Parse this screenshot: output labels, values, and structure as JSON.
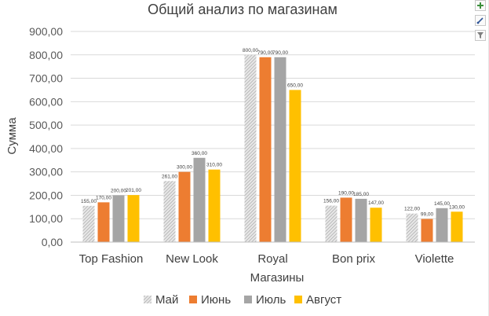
{
  "chart_data": {
    "type": "bar",
    "title": "Общий анализ по магазинам",
    "xlabel": "Магазины",
    "ylabel": "Сумма",
    "ylim": [
      0,
      900
    ],
    "yticks": [
      0,
      100,
      200,
      300,
      400,
      500,
      600,
      700,
      800,
      900
    ],
    "ytick_labels": [
      "0,00",
      "100,00",
      "200,00",
      "300,00",
      "400,00",
      "500,00",
      "600,00",
      "700,00",
      "800,00",
      "900,00"
    ],
    "grid": true,
    "legend_position": "bottom",
    "categories": [
      "Top Fashion",
      "New Look",
      "Royal",
      "Bon prix",
      "Violette"
    ],
    "series": [
      {
        "name": "Май",
        "color": "#c9c9c9",
        "pattern": "diagonal-hatch",
        "values": [
          155,
          261,
          800,
          156,
          122
        ],
        "labels": [
          "155,00",
          "261,00",
          "800,00",
          "156,00",
          "122,00"
        ]
      },
      {
        "name": "Июнь",
        "color": "#ed7d31",
        "values": [
          170,
          300,
          790,
          190,
          99
        ],
        "labels": [
          "170,00",
          "300,00",
          "790,00",
          "190,00",
          "99,00"
        ]
      },
      {
        "name": "Июль",
        "color": "#a5a5a5",
        "values": [
          200,
          360,
          790,
          185,
          145
        ],
        "labels": [
          "200,00",
          "360,00",
          "790,00",
          "185,00",
          "145,00"
        ]
      },
      {
        "name": "Август",
        "color": "#ffc000",
        "values": [
          201,
          310,
          650,
          147,
          130
        ],
        "labels": [
          "201,00",
          "310,00",
          "650,00",
          "147,00",
          "130,00"
        ]
      }
    ]
  },
  "tools": {
    "add_icon": "plus-icon",
    "style_icon": "brush-icon",
    "filter_icon": "filter-icon"
  }
}
